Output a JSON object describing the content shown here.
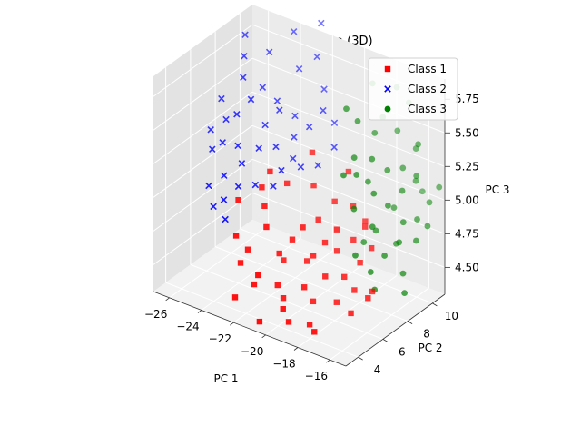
{
  "chart_data": {
    "type": "scatter",
    "projection": "3d",
    "title": "PCA - Projected Data (3D)",
    "xlabel": "PC 1",
    "ylabel": "PC 2",
    "zlabel": "PC 3",
    "xlim": [
      -27,
      -15
    ],
    "ylim": [
      3,
      11
    ],
    "zlim": [
      4.3,
      5.9
    ],
    "xticks": [
      "−26",
      "−24",
      "−22",
      "−20",
      "−18",
      "−16"
    ],
    "yticks": [
      "4",
      "6",
      "8",
      "10"
    ],
    "zticks": [
      "4.50",
      "4.75",
      "5.00",
      "5.25",
      "5.50",
      "5.75"
    ],
    "grid": true,
    "legend_position": "top-right",
    "series": [
      {
        "name": "Class 1",
        "marker": "square",
        "color": "#ff0000",
        "points": [
          [
            -21.5,
            5.0,
            4.9
          ],
          [
            -21.0,
            5.4,
            4.7
          ],
          [
            -20.5,
            5.8,
            4.8
          ],
          [
            -20.0,
            6.0,
            4.9
          ],
          [
            -19.5,
            6.2,
            4.7
          ],
          [
            -19.0,
            6.5,
            4.8
          ],
          [
            -18.5,
            6.8,
            4.9
          ],
          [
            -22.0,
            5.5,
            5.0
          ],
          [
            -21.2,
            6.0,
            4.6
          ],
          [
            -20.2,
            6.6,
            4.6
          ],
          [
            -19.8,
            7.0,
            4.9
          ],
          [
            -18.8,
            7.2,
            4.7
          ],
          [
            -18.0,
            7.5,
            4.8
          ],
          [
            -17.5,
            7.8,
            4.9
          ],
          [
            -22.5,
            4.8,
            4.7
          ],
          [
            -23.0,
            4.5,
            4.8
          ],
          [
            -21.8,
            4.4,
            4.5
          ],
          [
            -20.8,
            5.0,
            4.5
          ],
          [
            -19.6,
            5.6,
            4.5
          ],
          [
            -18.6,
            6.0,
            4.6
          ],
          [
            -17.8,
            6.5,
            4.6
          ],
          [
            -17.2,
            7.0,
            4.7
          ],
          [
            -16.8,
            7.4,
            4.8
          ],
          [
            -20.4,
            7.4,
            5.1
          ],
          [
            -19.4,
            7.8,
            5.0
          ],
          [
            -18.4,
            8.0,
            5.0
          ],
          [
            -21.6,
            6.8,
            5.1
          ],
          [
            -22.2,
            6.2,
            5.2
          ],
          [
            -20.6,
            5.2,
            4.4
          ],
          [
            -19.2,
            5.8,
            4.4
          ],
          [
            -18.2,
            6.4,
            4.4
          ],
          [
            -17.4,
            6.8,
            4.5
          ],
          [
            -16.6,
            7.2,
            4.5
          ],
          [
            -21.4,
            4.2,
            4.6
          ],
          [
            -22.8,
            4.6,
            4.6
          ],
          [
            -19.0,
            8.4,
            5.2
          ],
          [
            -17.8,
            8.2,
            4.9
          ],
          [
            -20.0,
            4.4,
            4.4
          ],
          [
            -18.8,
            5.0,
            4.3
          ],
          [
            -22.6,
            3.9,
            4.4
          ],
          [
            -21.0,
            3.8,
            4.3
          ],
          [
            -19.8,
            4.6,
            4.3
          ],
          [
            -20.8,
            7.8,
            5.3
          ],
          [
            -23.4,
            5.2,
            5.0
          ],
          [
            -22.4,
            5.8,
            5.1
          ],
          [
            -18.2,
            4.6,
            4.3
          ],
          [
            -17.0,
            6.0,
            4.4
          ],
          [
            -16.4,
            6.6,
            4.5
          ]
        ]
      },
      {
        "name": "Class 2",
        "marker": "x",
        "color": "#0000ff",
        "points": [
          [
            -24.5,
            6.5,
            5.5
          ],
          [
            -24.0,
            7.0,
            5.6
          ],
          [
            -23.5,
            7.5,
            5.4
          ],
          [
            -23.0,
            8.0,
            5.5
          ],
          [
            -25.0,
            6.0,
            5.3
          ],
          [
            -24.8,
            7.4,
            5.7
          ],
          [
            -24.2,
            8.2,
            5.6
          ],
          [
            -23.6,
            8.6,
            5.5
          ],
          [
            -22.8,
            9.0,
            5.4
          ],
          [
            -22.4,
            8.4,
            5.3
          ],
          [
            -25.4,
            6.8,
            5.4
          ],
          [
            -25.8,
            6.2,
            5.2
          ],
          [
            -24.6,
            5.6,
            5.1
          ],
          [
            -23.8,
            6.0,
            5.2
          ],
          [
            -23.2,
            6.6,
            5.3
          ],
          [
            -22.6,
            7.2,
            5.3
          ],
          [
            -22.0,
            7.8,
            5.2
          ],
          [
            -21.6,
            8.6,
            5.4
          ],
          [
            -21.2,
            9.2,
            5.5
          ],
          [
            -24.4,
            9.0,
            5.8
          ],
          [
            -23.0,
            9.6,
            5.7
          ],
          [
            -22.2,
            10.0,
            5.8
          ],
          [
            -25.2,
            8.0,
            5.8
          ],
          [
            -26.0,
            7.2,
            5.5
          ],
          [
            -24.0,
            4.8,
            5.0
          ],
          [
            -23.4,
            5.2,
            5.1
          ],
          [
            -22.8,
            5.8,
            5.1
          ],
          [
            -21.8,
            6.6,
            5.2
          ],
          [
            -21.2,
            7.4,
            5.2
          ],
          [
            -20.6,
            8.0,
            5.2
          ],
          [
            -20.2,
            8.8,
            5.3
          ],
          [
            -24.8,
            5.0,
            4.9
          ],
          [
            -25.4,
            5.4,
            5.0
          ],
          [
            -23.6,
            4.4,
            4.9
          ],
          [
            -22.4,
            10.6,
            6.0
          ],
          [
            -21.6,
            9.8,
            5.6
          ],
          [
            -25.6,
            8.6,
            5.9
          ],
          [
            -23.8,
            10.2,
            5.9
          ],
          [
            -20.8,
            9.6,
            5.4
          ],
          [
            -26.2,
            6.6,
            5.3
          ],
          [
            -24.2,
            6.2,
            5.3
          ],
          [
            -22.0,
            6.2,
            5.1
          ]
        ]
      },
      {
        "name": "Class 3",
        "marker": "circle",
        "color": "#008000",
        "points": [
          [
            -17.5,
            8.5,
            5.1
          ],
          [
            -17.0,
            9.0,
            5.0
          ],
          [
            -16.5,
            9.5,
            5.1
          ],
          [
            -16.0,
            10.0,
            5.2
          ],
          [
            -15.5,
            10.4,
            5.0
          ],
          [
            -18.0,
            9.0,
            5.3
          ],
          [
            -17.5,
            9.6,
            5.2
          ],
          [
            -17.0,
            10.2,
            5.2
          ],
          [
            -16.5,
            10.6,
            5.1
          ],
          [
            -18.5,
            8.4,
            5.2
          ],
          [
            -17.8,
            10.8,
            5.4
          ],
          [
            -16.8,
            11.0,
            5.3
          ],
          [
            -16.2,
            9.2,
            4.9
          ],
          [
            -15.8,
            9.8,
            4.9
          ],
          [
            -17.2,
            8.0,
            4.9
          ],
          [
            -18.2,
            7.8,
            5.0
          ],
          [
            -18.8,
            8.6,
            5.3
          ],
          [
            -19.2,
            9.4,
            5.5
          ],
          [
            -18.4,
            10.4,
            5.5
          ],
          [
            -17.4,
            11.2,
            5.6
          ],
          [
            -16.0,
            8.6,
            4.8
          ],
          [
            -15.4,
            9.2,
            4.8
          ],
          [
            -17.6,
            8.8,
            4.8
          ],
          [
            -16.6,
            8.2,
            4.7
          ],
          [
            -18.6,
            10.0,
            5.4
          ],
          [
            -15.2,
            10.8,
            5.1
          ],
          [
            -15.0,
            9.6,
            4.9
          ],
          [
            -19.0,
            8.0,
            5.2
          ],
          [
            -17.0,
            7.6,
            4.6
          ],
          [
            -16.2,
            10.4,
            5.4
          ],
          [
            -19.6,
            9.0,
            5.6
          ],
          [
            -18.0,
            11.0,
            5.7
          ],
          [
            -15.6,
            8.4,
            4.6
          ],
          [
            -16.8,
            9.4,
            4.7
          ],
          [
            -18.4,
            9.2,
            5.1
          ],
          [
            -17.8,
            7.4,
            4.7
          ],
          [
            -15.2,
            8.0,
            4.5
          ],
          [
            -16.4,
            11.0,
            5.0
          ],
          [
            -19.2,
            10.6,
            5.7
          ],
          [
            -16.6,
            7.4,
            4.5
          ],
          [
            -17.4,
            10.0,
            4.9
          ],
          [
            -18.2,
            8.6,
            4.7
          ]
        ]
      }
    ]
  }
}
